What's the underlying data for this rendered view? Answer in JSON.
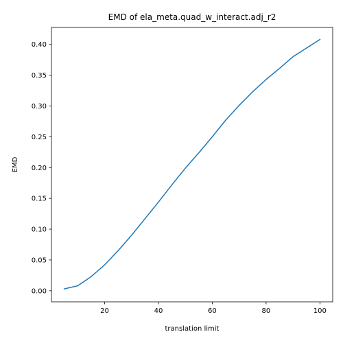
{
  "chart_data": {
    "type": "line",
    "title": "EMD of ela_meta.quad_w_interact.adj_r2",
    "xlabel": "translation limit",
    "ylabel": "EMD",
    "xlim": [
      0.25,
      104.75
    ],
    "ylim": [
      -0.018,
      0.4275
    ],
    "xticks": [
      20,
      40,
      60,
      80,
      100
    ],
    "xtick_labels": [
      "20",
      "40",
      "60",
      "80",
      "100"
    ],
    "yticks": [
      0.0,
      0.05,
      0.1,
      0.15,
      0.2,
      0.25,
      0.3,
      0.35,
      0.4
    ],
    "ytick_labels": [
      "0.00",
      "0.05",
      "0.10",
      "0.15",
      "0.20",
      "0.25",
      "0.30",
      "0.35",
      "0.40"
    ],
    "grid": false,
    "series": [
      {
        "color": "#1f77b4",
        "x": [
          5,
          10,
          15,
          20,
          25,
          30,
          35,
          40,
          45,
          50,
          55,
          60,
          65,
          70,
          75,
          80,
          85,
          90,
          95,
          100
        ],
        "y": [
          0.003,
          0.008,
          0.023,
          0.042,
          0.065,
          0.09,
          0.117,
          0.144,
          0.172,
          0.199,
          0.224,
          0.25,
          0.277,
          0.301,
          0.323,
          0.343,
          0.361,
          0.38,
          0.394,
          0.408
        ]
      }
    ]
  }
}
